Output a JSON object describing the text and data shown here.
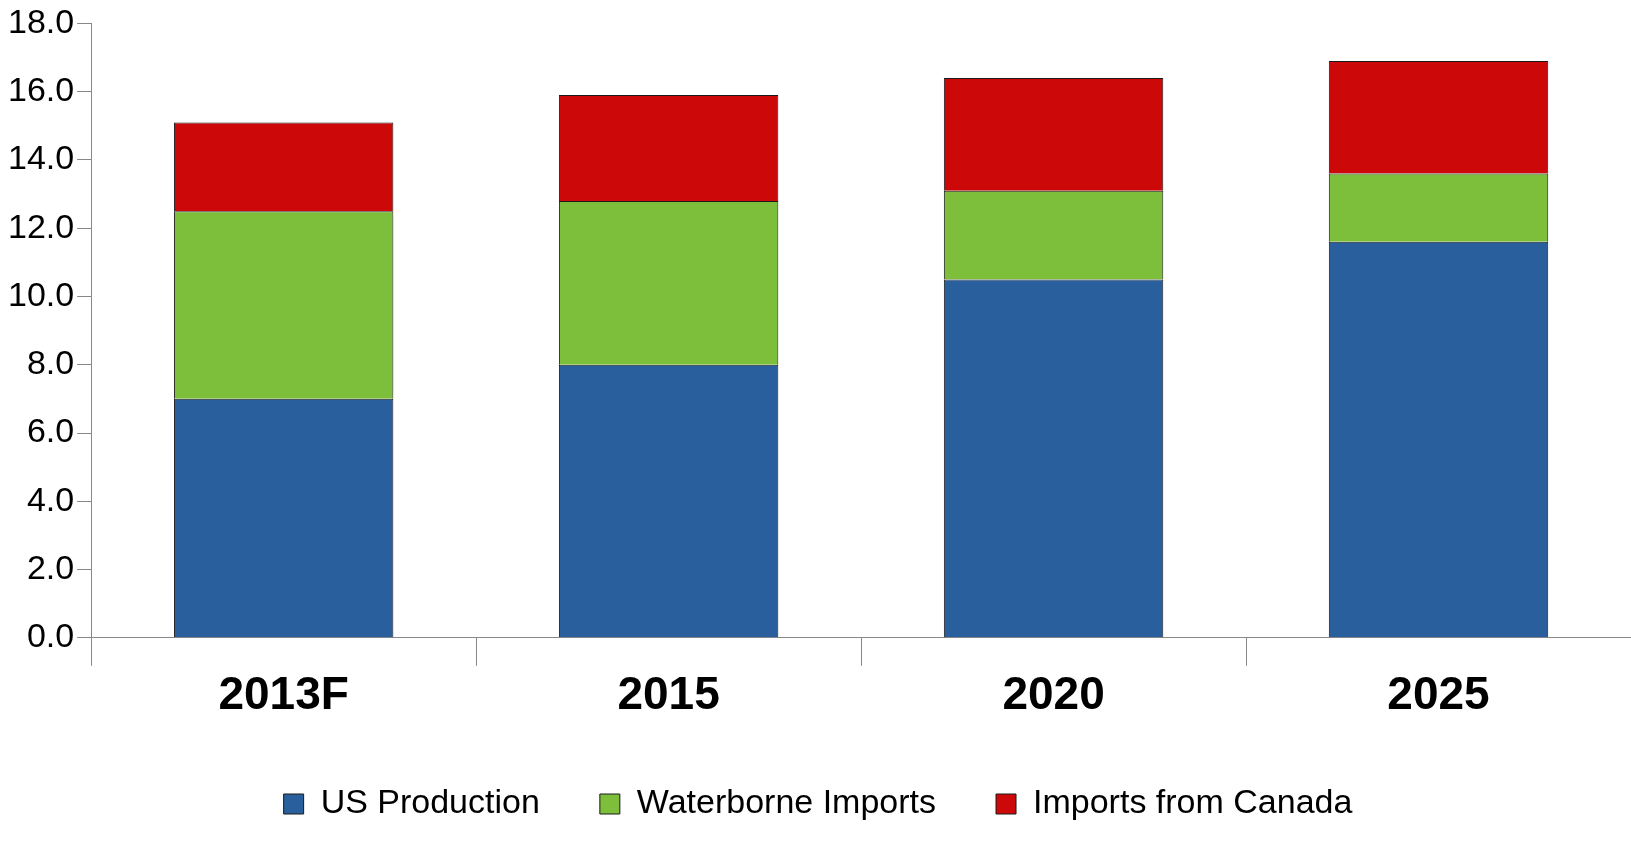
{
  "chart_data": {
    "type": "bar",
    "stacked": true,
    "categories": [
      "2013F",
      "2015",
      "2020",
      "2025"
    ],
    "series": [
      {
        "name": "US Production",
        "color": "#2a5f9e",
        "values": [
          7.0,
          8.0,
          10.5,
          11.6
        ]
      },
      {
        "name": "Waterborne Imports",
        "color": "#7dbf3a",
        "values": [
          5.5,
          4.8,
          2.6,
          2.0
        ]
      },
      {
        "name": "Imports from Canada",
        "color": "#cc0808",
        "values": [
          2.6,
          3.1,
          3.3,
          3.3
        ]
      }
    ],
    "ylim": [
      0,
      18
    ],
    "yticks": [
      {
        "value": 0,
        "label": "0.0"
      },
      {
        "value": 2,
        "label": "2.0"
      },
      {
        "value": 4,
        "label": "4.0"
      },
      {
        "value": 6,
        "label": "6.0"
      },
      {
        "value": 8,
        "label": "8.0"
      },
      {
        "value": 10,
        "label": "10.0"
      },
      {
        "value": 12,
        "label": "12.0"
      },
      {
        "value": 14,
        "label": "14.0"
      },
      {
        "value": 16,
        "label": "16.0"
      },
      {
        "value": 18,
        "label": "18.0"
      }
    ],
    "grid": false,
    "legend": "bottom"
  }
}
